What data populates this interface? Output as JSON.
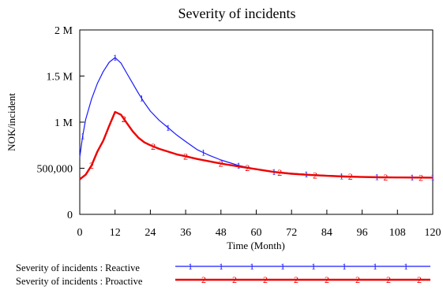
{
  "chart_data": {
    "type": "line",
    "title": "Severity of incidents",
    "xlabel": "Time (Month)",
    "ylabel": "NOK/incident",
    "xlim": [
      0,
      120
    ],
    "ylim": [
      0,
      2000000
    ],
    "x_ticks": [
      0,
      12,
      24,
      36,
      48,
      60,
      72,
      84,
      96,
      108,
      120
    ],
    "x_tick_labels": [
      "0",
      "12",
      "24",
      "36",
      "48",
      "60",
      "72",
      "84",
      "96",
      "108",
      "120"
    ],
    "y_ticks": [
      0,
      500000,
      1000000,
      1500000,
      2000000
    ],
    "y_tick_labels": [
      "0",
      "500,000",
      "1 M",
      "1.5 M",
      "2 M"
    ],
    "grid": false,
    "legend_placement": "bottom",
    "series": [
      {
        "name": "Severity of incidents : Reactive",
        "color": "#1a1aff",
        "marker": "1",
        "x": [
          0,
          1,
          2,
          4,
          6,
          8,
          10,
          12,
          14,
          16,
          18,
          20,
          22,
          24,
          27,
          30,
          33,
          36,
          40,
          44,
          48,
          54,
          60,
          66,
          72,
          78,
          84,
          90,
          96,
          102,
          108,
          114,
          120
        ],
        "y": [
          620000,
          850000,
          1030000,
          1250000,
          1420000,
          1550000,
          1650000,
          1700000,
          1640000,
          1530000,
          1420000,
          1310000,
          1210000,
          1120000,
          1020000,
          940000,
          860000,
          790000,
          700000,
          640000,
          590000,
          530000,
          490000,
          460000,
          445000,
          432000,
          422000,
          414000,
          408000,
          405000,
          403000,
          401000,
          400000
        ]
      },
      {
        "name": "Severity of incidents : Proactive",
        "color": "#ee0000",
        "marker": "2",
        "x": [
          0,
          2,
          4,
          6,
          8,
          10,
          12,
          14,
          16,
          18,
          20,
          22,
          24,
          27,
          30,
          33,
          36,
          40,
          44,
          48,
          54,
          60,
          66,
          72,
          78,
          84,
          90,
          96,
          102,
          108,
          114,
          120
        ],
        "y": [
          380000,
          430000,
          530000,
          680000,
          800000,
          960000,
          1110000,
          1080000,
          990000,
          900000,
          830000,
          780000,
          750000,
          710000,
          680000,
          650000,
          630000,
          600000,
          575000,
          550000,
          520000,
          490000,
          460000,
          440000,
          428000,
          418000,
          410000,
          405000,
          402000,
          400000,
          399000,
          398000
        ]
      }
    ]
  }
}
